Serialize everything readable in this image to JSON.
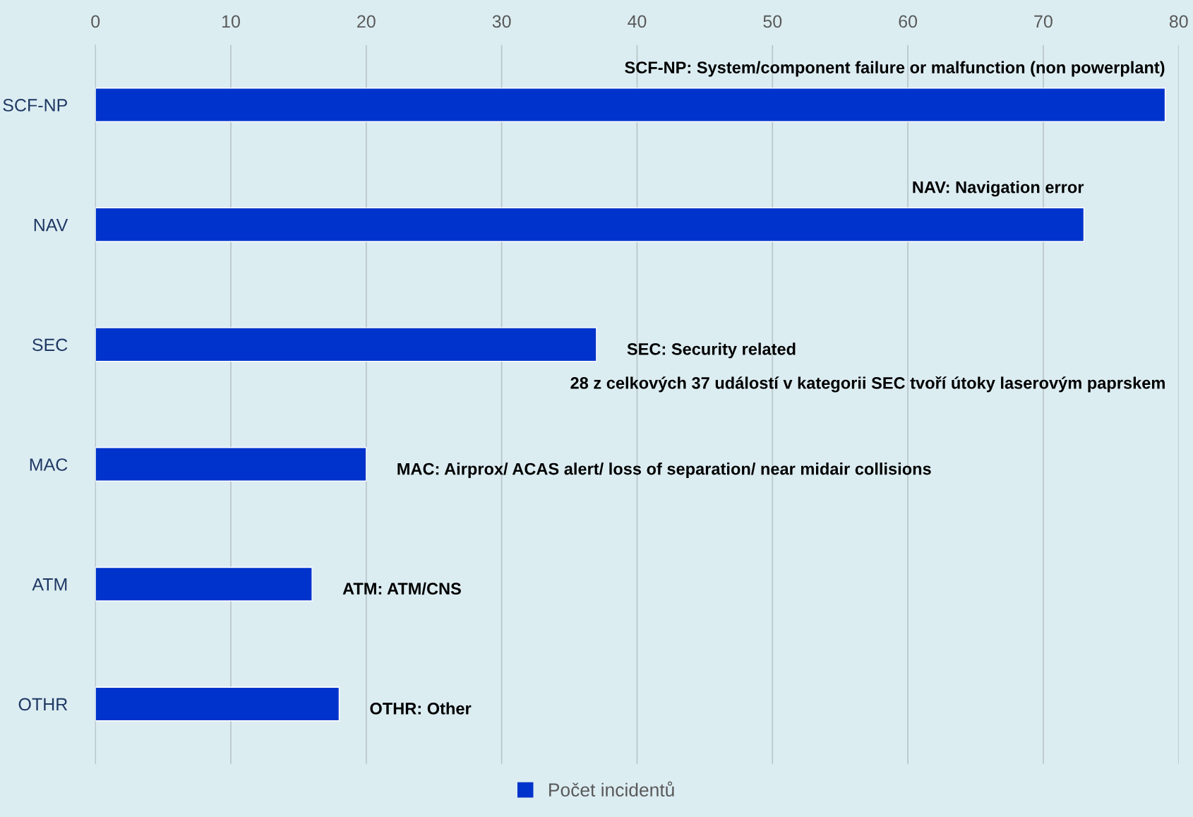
{
  "chart_data": {
    "type": "bar",
    "orientation": "horizontal",
    "categories": [
      "SCF-NP",
      "NAV",
      "SEC",
      "MAC",
      "ATM",
      "OTHR"
    ],
    "series": [
      {
        "name": "Počet incidentů",
        "color": "#0033cc",
        "values": [
          79,
          73,
          37,
          20,
          16,
          18
        ]
      }
    ],
    "xlim": [
      0,
      80
    ],
    "xticks": [
      0,
      10,
      20,
      30,
      40,
      50,
      60,
      70,
      80
    ],
    "grid": "x",
    "legend": "bottom",
    "annotations": [
      {
        "text": "SCF-NP: System/component failure or malfunction (non powerplant)",
        "x": 79,
        "y": "SCF-NP"
      },
      {
        "text": "NAV: Navigation error",
        "x": 73,
        "y": "NAV"
      },
      {
        "text": "SEC: Security related",
        "x": 37,
        "y": "SEC"
      },
      "28 z celkových 37 událostí v kategorii SEC tvoří útoky laserovým paprskem",
      {
        "text": "MAC: Airprox/ ACAS alert/ loss of separation/ near midair collisions",
        "x": 20,
        "y": "MAC"
      },
      {
        "text": "ATM: ATM/CNS",
        "x": 16,
        "y": "ATM"
      },
      {
        "text": "OTHR: Other",
        "x": 18,
        "y": "OTHR"
      }
    ]
  }
}
